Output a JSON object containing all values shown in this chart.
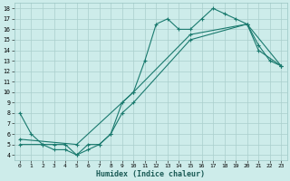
{
  "xlabel": "Humidex (Indice chaleur)",
  "background_color": "#cdecea",
  "grid_color": "#aacfcc",
  "line_color": "#1a7a6e",
  "xlim": [
    -0.5,
    23.5
  ],
  "ylim": [
    3.5,
    18.5
  ],
  "xticks": [
    0,
    1,
    2,
    3,
    4,
    5,
    6,
    7,
    8,
    9,
    10,
    11,
    12,
    13,
    14,
    15,
    16,
    17,
    18,
    19,
    20,
    21,
    22,
    23
  ],
  "yticks": [
    4,
    5,
    6,
    7,
    8,
    9,
    10,
    11,
    12,
    13,
    14,
    15,
    16,
    17,
    18
  ],
  "line1_x": [
    0,
    1,
    2,
    3,
    4,
    5,
    6,
    7,
    8,
    9,
    10,
    11,
    12,
    13,
    14,
    15,
    16,
    17,
    18,
    19,
    20,
    21,
    22,
    23
  ],
  "line1_y": [
    8,
    6,
    5,
    5,
    5,
    4,
    5,
    5,
    6,
    9,
    10,
    13,
    16.5,
    17,
    16,
    16,
    17,
    18,
    17.5,
    17,
    16.5,
    14.5,
    13,
    12.5
  ],
  "line2_x": [
    0,
    2,
    3,
    4,
    5,
    6,
    7,
    8,
    9,
    10,
    15,
    20,
    21,
    23
  ],
  "line2_y": [
    5,
    5,
    4.5,
    4.5,
    4,
    4.5,
    5,
    6,
    8,
    9,
    15,
    16.5,
    14,
    12.5
  ],
  "line3_x": [
    0,
    5,
    10,
    15,
    20,
    23
  ],
  "line3_y": [
    5.5,
    5,
    10,
    15.5,
    16.5,
    12.5
  ]
}
